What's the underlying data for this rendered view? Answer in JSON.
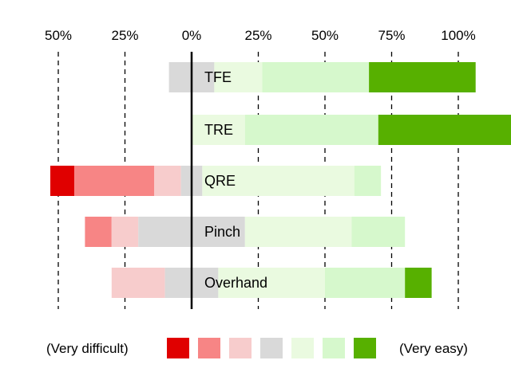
{
  "chart_data": {
    "type": "bar",
    "subtype": "diverging-stacked-likert",
    "orientation": "horizontal",
    "axis": {
      "ticks": [
        -50,
        -25,
        0,
        25,
        50,
        75,
        100
      ],
      "tick_labels": [
        "50%",
        "25%",
        "0%",
        "25%",
        "50%",
        "75%",
        "100%"
      ],
      "range": [
        -50,
        100
      ],
      "grid": "dashed vertical lines at each tick, solid line at 0"
    },
    "levels": [
      {
        "label": "Very difficult",
        "color": "#e00000"
      },
      {
        "label": "",
        "color": "#f78585"
      },
      {
        "label": "",
        "color": "#f7cccc"
      },
      {
        "label": "",
        "color": "#d9d9d9"
      },
      {
        "label": "",
        "color": "#eafae0"
      },
      {
        "label": "",
        "color": "#d6f8cc"
      },
      {
        "label": "Very easy",
        "color": "#57b000"
      }
    ],
    "rows": [
      {
        "name": "TFE",
        "values": [
          0,
          0,
          0,
          17,
          18,
          40,
          40
        ]
      },
      {
        "name": "TRE",
        "values": [
          0,
          0,
          0,
          0,
          20,
          50,
          50
        ]
      },
      {
        "name": "QRE",
        "values": [
          9,
          30,
          10,
          8,
          57,
          10,
          0
        ]
      },
      {
        "name": "Pinch",
        "values": [
          0,
          10,
          10,
          40,
          40,
          20,
          0
        ]
      },
      {
        "name": "Overhand",
        "values": [
          0,
          0,
          20,
          20,
          40,
          30,
          10
        ]
      }
    ]
  },
  "legend": {
    "left_label": "(Very difficult)",
    "right_label": "(Very easy)"
  }
}
